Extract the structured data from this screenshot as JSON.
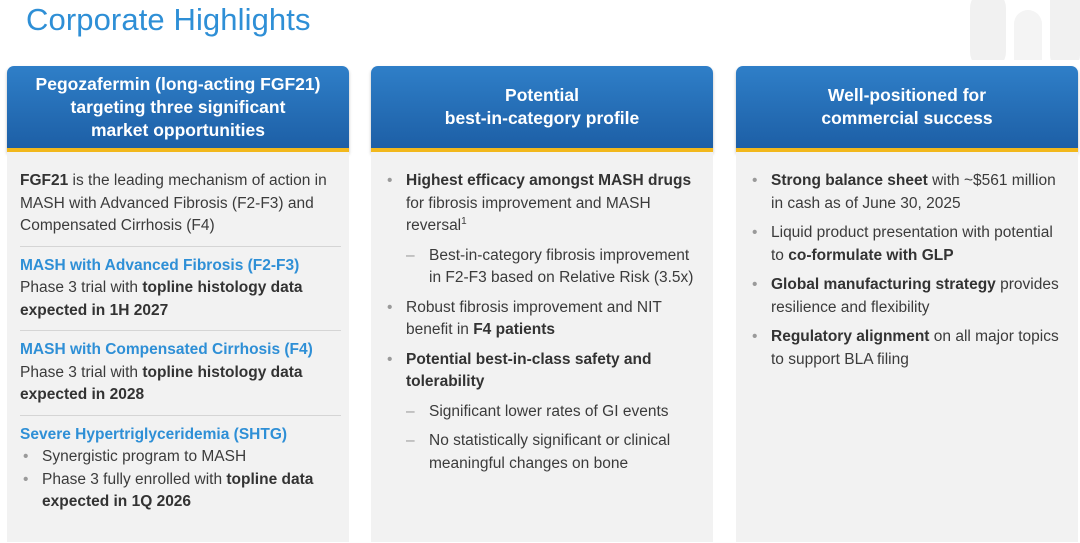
{
  "title": "Corporate Highlights",
  "col1": {
    "header": [
      "Pegozafermin (long-acting FGF21)",
      "targeting three significant",
      "market opportunities"
    ],
    "intro_bold": "FGF21",
    "intro_rest": " is the leading mechanism of action in MASH with Advanced Fibrosis (F2-F3) and Compensated Cirrhosis (F4)",
    "s2_title": "MASH with Advanced Fibrosis (F2-F3)",
    "s2_pre": "Phase 3 trial with ",
    "s2_bold": "topline histology data expected in 1H 2027",
    "s3_title": "MASH with Compensated Cirrhosis (F4)",
    "s3_pre": "Phase 3 trial with ",
    "s3_bold": "topline histology data expected in 2028",
    "s4_title": "Severe Hypertriglyceridemia (SHTG)",
    "s4_b1": "Synergistic program to MASH",
    "s4_b2_pre": "Phase 3 fully enrolled with ",
    "s4_b2_bold": "topline data expected in 1Q 2026"
  },
  "col2": {
    "header": [
      "Potential",
      "best-in-category profile"
    ],
    "b1_bold": "Highest efficacy amongst MASH drugs",
    "b1_rest": " for fibrosis improvement and MASH reversal",
    "b1_sup": "1",
    "b1_sub": "Best-in-category fibrosis improvement in F2-F3 based on Relative Risk (3.5x)",
    "b2_pre": "Robust fibrosis improvement and NIT benefit in ",
    "b2_bold": "F4 patients",
    "b3_bold": "Potential best-in-class safety and tolerability",
    "b3_sub1": "Significant lower rates of GI events",
    "b3_sub2": "No statistically significant or clinical meaningful changes on bone"
  },
  "col3": {
    "header": [
      "Well-positioned for",
      "commercial success"
    ],
    "b1_bold": "Strong balance sheet",
    "b1_rest": " with ~$561 million in cash as of June 30, 2025",
    "b2_pre": "Liquid product presentation with potential to ",
    "b2_bold": "co-formulate with GLP",
    "b3_bold": "Global manufacturing strategy",
    "b3_rest": " provides resilience and flexibility",
    "b4_bold": "Regulatory alignment",
    "b4_rest": " on all major topics to support BLA filing"
  },
  "colors": {
    "title": "#2e8fd6",
    "header_bg": "#1d5fa6",
    "header_accent": "#f2b81c",
    "panel_bg": "#f2f2f2"
  }
}
